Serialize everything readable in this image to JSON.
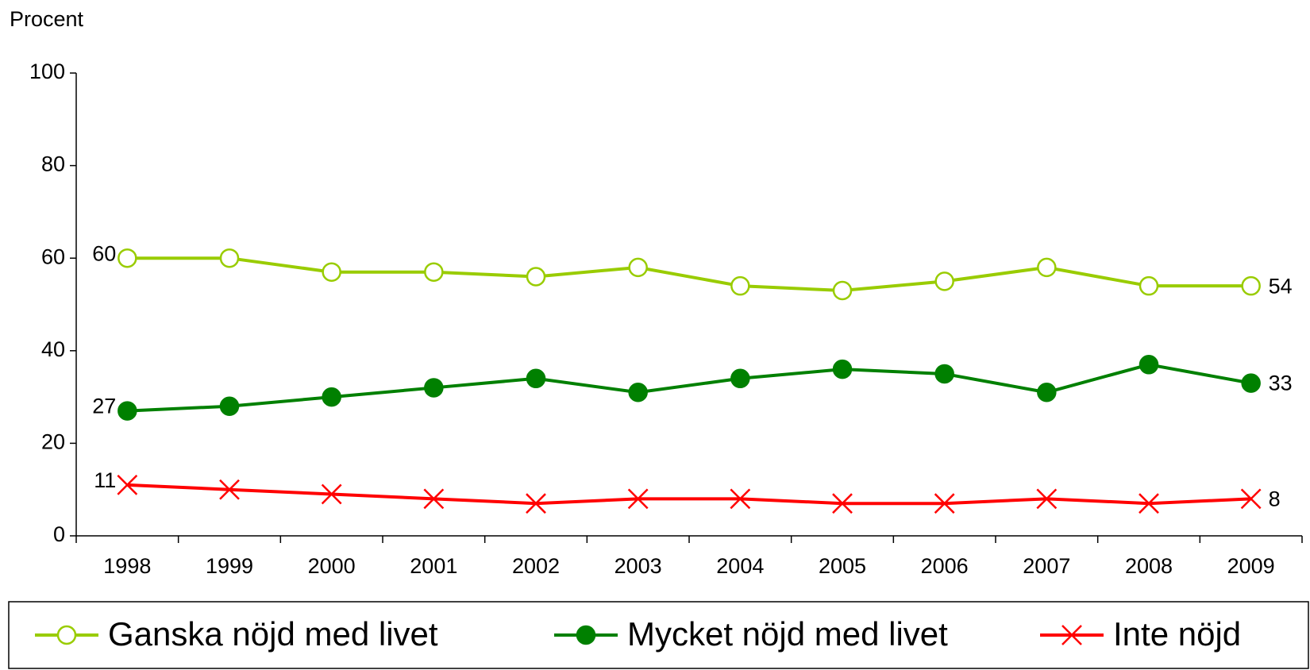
{
  "chart_data": {
    "type": "line",
    "y_label": "Procent",
    "categories": [
      "1998",
      "1999",
      "2000",
      "2001",
      "2002",
      "2003",
      "2004",
      "2005",
      "2006",
      "2007",
      "2008",
      "2009"
    ],
    "series": [
      {
        "name": "Ganska nöjd med livet",
        "color": "#99cc00",
        "marker": "open-circle",
        "values": [
          60,
          60,
          57,
          57,
          56,
          58,
          54,
          53,
          55,
          58,
          54,
          54
        ]
      },
      {
        "name": "Mycket nöjd med livet",
        "color": "#008000",
        "marker": "filled-circle",
        "values": [
          27,
          28,
          30,
          32,
          34,
          31,
          34,
          36,
          35,
          31,
          37,
          33
        ]
      },
      {
        "name": "Inte nöjd",
        "color": "#ff0000",
        "marker": "x",
        "values": [
          11,
          10,
          9,
          8,
          7,
          8,
          8,
          7,
          7,
          8,
          7,
          8
        ]
      }
    ],
    "ylim": [
      0,
      100
    ],
    "yticks": [
      0,
      20,
      40,
      60,
      80,
      100
    ],
    "grid": false,
    "legend": "bottom"
  }
}
